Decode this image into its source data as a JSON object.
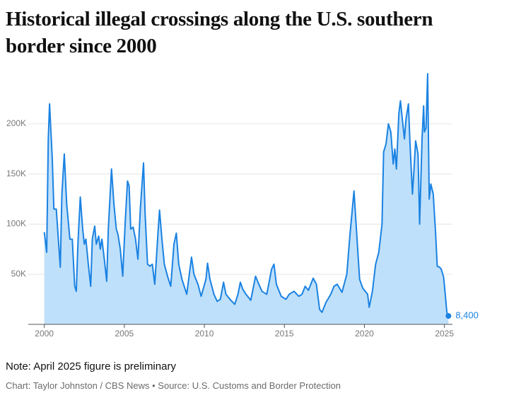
{
  "chart_data": {
    "type": "area",
    "title": "Historical illegal crossings along the U.S. southern border since 2000",
    "note": "Note: April 2025 figure is preliminary",
    "credit": "Chart: Taylor Johnston / CBS News • Source: U.S. Customs and Border Protection",
    "color": "#1a82e2",
    "fill": "#bfe0fa",
    "grid": true,
    "xlim": [
      1999,
      2025.5
    ],
    "xticks": [
      2000,
      2005,
      2010,
      2015,
      2020,
      2025
    ],
    "ylim": [
      0,
      260000
    ],
    "yticks": [
      {
        "value": 50000,
        "label": "50K"
      },
      {
        "value": 100000,
        "label": "100K"
      },
      {
        "value": 150000,
        "label": "150K"
      },
      {
        "value": 200000,
        "label": "200K"
      }
    ],
    "x": [
      2000,
      2000.15,
      2000.25,
      2000.33,
      2000.5,
      2000.6,
      2000.75,
      2000.9,
      2001,
      2001.1,
      2001.25,
      2001.4,
      2001.6,
      2001.75,
      2001.9,
      2002,
      2002.1,
      2002.25,
      2002.4,
      2002.5,
      2002.6,
      2002.75,
      2002.9,
      2003,
      2003.15,
      2003.25,
      2003.4,
      2003.5,
      2003.6,
      2003.75,
      2003.9,
      2004,
      2004.2,
      2004.35,
      2004.5,
      2004.6,
      2004.75,
      2004.9,
      2005.05,
      2005.2,
      2005.3,
      2005.4,
      2005.55,
      2005.7,
      2005.85,
      2006,
      2006.2,
      2006.3,
      2006.45,
      2006.6,
      2006.75,
      2006.9,
      2007.1,
      2007.2,
      2007.35,
      2007.5,
      2007.7,
      2007.9,
      2008.1,
      2008.25,
      2008.4,
      2008.6,
      2008.8,
      2008.9,
      2009.1,
      2009.2,
      2009.35,
      2009.6,
      2009.8,
      2010.1,
      2010.2,
      2010.35,
      2010.6,
      2010.8,
      2011,
      2011.2,
      2011.35,
      2011.6,
      2011.9,
      2012.1,
      2012.25,
      2012.4,
      2012.6,
      2012.9,
      2013.2,
      2013.35,
      2013.6,
      2013.9,
      2014.2,
      2014.35,
      2014.5,
      2014.8,
      2015.1,
      2015.3,
      2015.6,
      2015.9,
      2016.1,
      2016.3,
      2016.5,
      2016.8,
      2017,
      2017.2,
      2017.35,
      2017.6,
      2017.9,
      2018.1,
      2018.3,
      2018.6,
      2018.9,
      2019.1,
      2019.35,
      2019.5,
      2019.7,
      2019.9,
      2020.2,
      2020.3,
      2020.5,
      2020.7,
      2020.9,
      2021.1,
      2021.2,
      2021.35,
      2021.5,
      2021.65,
      2021.8,
      2021.9,
      2022,
      2022.15,
      2022.25,
      2022.4,
      2022.5,
      2022.6,
      2022.75,
      2022.85,
      2023,
      2023.1,
      2023.2,
      2023.35,
      2023.45,
      2023.6,
      2023.7,
      2023.75,
      2023.85,
      2023.95,
      2024.05,
      2024.15,
      2024.3,
      2024.45,
      2024.55,
      2024.7,
      2024.8,
      2024.95,
      2025.05,
      2025.15,
      2025.25
    ],
    "values": [
      92000,
      72000,
      185000,
      220000,
      165000,
      115000,
      115000,
      80000,
      57000,
      130000,
      170000,
      120000,
      85000,
      85000,
      38000,
      33000,
      80000,
      127000,
      95000,
      80000,
      85000,
      60000,
      38000,
      85000,
      98000,
      80000,
      88000,
      75000,
      85000,
      65000,
      43000,
      95000,
      155000,
      120000,
      95000,
      90000,
      75000,
      48000,
      100000,
      143000,
      138000,
      95000,
      97000,
      85000,
      65000,
      115000,
      161000,
      110000,
      60000,
      58000,
      60000,
      40000,
      90000,
      114000,
      85000,
      60000,
      48000,
      38000,
      80000,
      91000,
      60000,
      45000,
      35000,
      30000,
      55000,
      67000,
      50000,
      40000,
      28000,
      45000,
      61000,
      45000,
      30000,
      23000,
      25000,
      42000,
      30000,
      25000,
      20000,
      30000,
      42000,
      35000,
      30000,
      24000,
      48000,
      42000,
      33000,
      30000,
      55000,
      60000,
      40000,
      28000,
      25000,
      30000,
      33000,
      28000,
      30000,
      38000,
      34000,
      46000,
      40000,
      15000,
      12000,
      22000,
      30000,
      38000,
      40000,
      32000,
      50000,
      90000,
      133000,
      95000,
      45000,
      36000,
      30000,
      17000,
      33000,
      60000,
      72000,
      100000,
      172000,
      180000,
      200000,
      192000,
      160000,
      175000,
      155000,
      210000,
      223000,
      200000,
      185000,
      205000,
      220000,
      180000,
      130000,
      155000,
      183000,
      170000,
      100000,
      185000,
      218000,
      192000,
      196000,
      250000,
      125000,
      140000,
      130000,
      90000,
      58000,
      57000,
      55000,
      47000,
      30000,
      12000,
      8400
    ],
    "value_labels": [
      null,
      null,
      null,
      null,
      null,
      null,
      null,
      null,
      null,
      null,
      null,
      null,
      null,
      null,
      null,
      null,
      null,
      null,
      null,
      null,
      null,
      null,
      null,
      null,
      null,
      null,
      null,
      null,
      null,
      null,
      null,
      null,
      null,
      null,
      null,
      null,
      null,
      null,
      null,
      null,
      null,
      null,
      null,
      null,
      null,
      null,
      null,
      null,
      null,
      null,
      null,
      null,
      null,
      null,
      null,
      null,
      null,
      null,
      null,
      null,
      null,
      null,
      null,
      null,
      null,
      null,
      null,
      null,
      null,
      null,
      null,
      null,
      null,
      null,
      null,
      null,
      null,
      null,
      null,
      null,
      null,
      null,
      null,
      null,
      null,
      null,
      null,
      null,
      null,
      null,
      null,
      null,
      null,
      null,
      null,
      null,
      null,
      null,
      null,
      null,
      null,
      null,
      null,
      null,
      null,
      null,
      null,
      null,
      null,
      null,
      null,
      null,
      null,
      null,
      null,
      null,
      null,
      null,
      null,
      null,
      null,
      null,
      null,
      null,
      null,
      null,
      null,
      null,
      null,
      null,
      null,
      null,
      null,
      null,
      null,
      null,
      null,
      null,
      null,
      null,
      null,
      null,
      null,
      null,
      null,
      null,
      null,
      null,
      null,
      null,
      null,
      null,
      null,
      null,
      "8,400"
    ]
  }
}
